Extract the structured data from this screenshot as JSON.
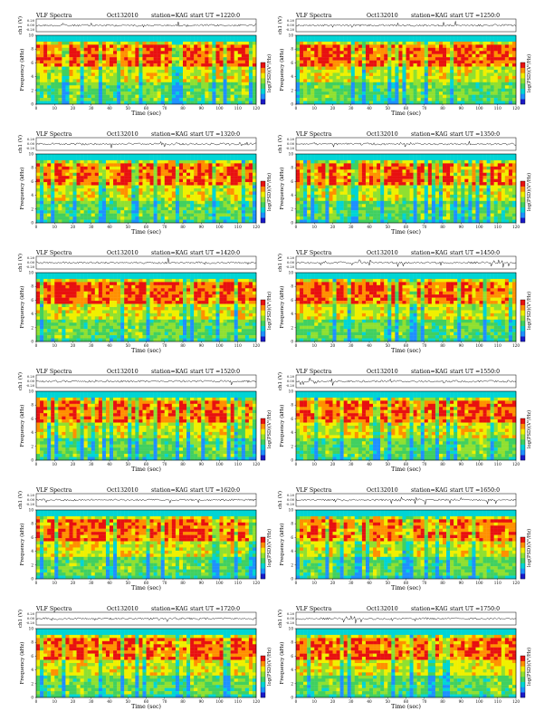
{
  "panels": [
    {
      "title": "VLF Spectra",
      "date": "Oct132010",
      "station": "station=KAG",
      "start_label": "start UT =1220:0"
    },
    {
      "title": "VLF Spectra",
      "date": "Oct132010",
      "station": "station=KAG",
      "start_label": "start UT =1250:0"
    },
    {
      "title": "VLF Spectra",
      "date": "Oct132010",
      "station": "station=KAG",
      "start_label": "start UT =1320:0"
    },
    {
      "title": "VLF Spectra",
      "date": "Oct132010",
      "station": "station=KAG",
      "start_label": "start UT =1350:0"
    },
    {
      "title": "VLF Spectra",
      "date": "Oct132010",
      "station": "station=KAG",
      "start_label": "start UT =1420:0"
    },
    {
      "title": "VLF Spectra",
      "date": "Oct132010",
      "station": "station=KAG",
      "start_label": "start UT =1450:0"
    },
    {
      "title": "VLF Spectra",
      "date": "Oct132010",
      "station": "station=KAG",
      "start_label": "start UT =1520:0"
    },
    {
      "title": "VLF Spectra",
      "date": "Oct132010",
      "station": "station=KAG",
      "start_label": "start UT =1550:0"
    },
    {
      "title": "VLF Spectra",
      "date": "Oct132010",
      "station": "station=KAG",
      "start_label": "start UT =1620:0"
    },
    {
      "title": "VLF Spectra",
      "date": "Oct132010",
      "station": "station=KAG",
      "start_label": "start UT =1650:0"
    },
    {
      "title": "VLF Spectra",
      "date": "Oct132010",
      "station": "station=KAG",
      "start_label": "start UT =1720:0"
    },
    {
      "title": "VLF Spectra",
      "date": "Oct132010",
      "station": "station=KAG",
      "start_label": "start UT =1750:0"
    }
  ],
  "chart_data": {
    "type": "heatmap",
    "xlabel": "Time (sec)",
    "ylabel_spectrogram": "Frequency (kHz)",
    "ylabel_waveform": "ch1 (V)",
    "colorbar_label": "log(PSD)(V²/Hz)",
    "x_ticks": [
      "0",
      "10",
      "20",
      "30",
      "40",
      "50",
      "60",
      "70",
      "80",
      "90",
      "100",
      "110",
      "120"
    ],
    "y_ticks": [
      "0",
      "2",
      "4",
      "6",
      "8",
      "10"
    ],
    "waveform_ticks": [
      "0.20",
      "0.00",
      "-0.20"
    ],
    "xlim": [
      0,
      120
    ],
    "ylim_khz": [
      0,
      10
    ],
    "colormap": [
      "#1a1ac8",
      "#1e90ff",
      "#00d5d5",
      "#40d060",
      "#90e030",
      "#f0f000",
      "#ff9000",
      "#e81010"
    ],
    "colors": {
      "spectrogram_top_band": "#00d5d5",
      "dominant_band": "#e81010"
    }
  }
}
